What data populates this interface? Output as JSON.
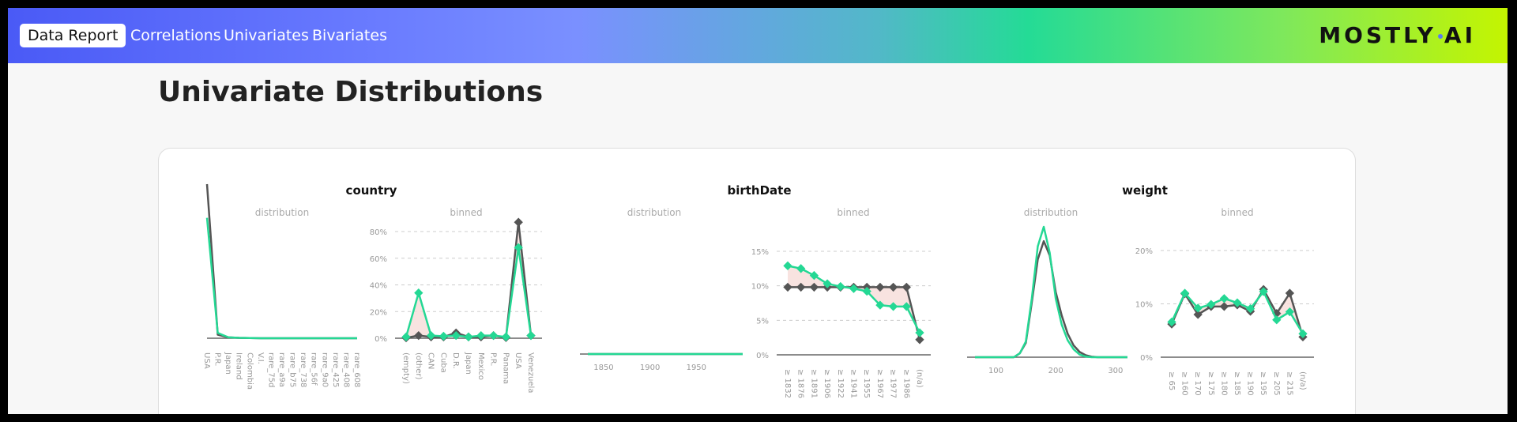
{
  "header": {
    "brand_label": "Data Report",
    "nav": [
      "Correlations",
      "Univariates",
      "Bivariates"
    ],
    "logo": "MOSTLY AI"
  },
  "page_title": "Univariate Distributions",
  "colors": {
    "target": "#555555",
    "synthetic": "#24d894",
    "diff_fill": "#f6dcd8"
  },
  "chart_data": [
    {
      "variable": "country",
      "panel": "distribution",
      "type": "line",
      "categories": [
        "USA",
        "P.R.",
        "Japan",
        "Ireland",
        "Colombia",
        "V.I.",
        "rare_75d",
        "rare_a9a",
        "rare_b75",
        "rare_738",
        "rare_56f",
        "rare_9a0",
        "rare_425",
        "rare_408",
        "rare_608"
      ],
      "series": [
        {
          "values": [
            87,
            2,
            0.5,
            0.2,
            0.1,
            0,
            0,
            0,
            0,
            0,
            0,
            0,
            0,
            0,
            0
          ]
        },
        {
          "values": [
            68,
            3,
            0.5,
            0.2,
            0.1,
            0,
            0,
            0,
            0,
            0,
            0,
            0,
            0,
            0,
            0
          ]
        }
      ]
    },
    {
      "variable": "country",
      "panel": "binned",
      "type": "line",
      "ylim": [
        0,
        90
      ],
      "yticks": [
        "0%",
        "20%",
        "40%",
        "60%",
        "80%"
      ],
      "ytick_values": [
        0,
        20,
        40,
        60,
        80
      ],
      "categories": [
        "(empty)",
        "(other)",
        "CAN",
        "Cuba",
        "D.R.",
        "Japan",
        "Mexico",
        "P.R.",
        "Panama",
        "USA",
        "Venezuela"
      ],
      "series": [
        {
          "values": [
            0.3,
            2,
            1,
            1,
            4,
            1,
            1,
            2,
            0.5,
            87,
            2
          ]
        },
        {
          "values": [
            1,
            34,
            2,
            1.5,
            2,
            1,
            2,
            2,
            1,
            68,
            2
          ]
        }
      ]
    },
    {
      "variable": "birthDate",
      "panel": "distribution",
      "type": "line",
      "xlim": [
        1833,
        2000
      ],
      "xticks": [
        "1850",
        "1900",
        "1950"
      ],
      "xtick_values": [
        1850,
        1900,
        1950
      ],
      "series": [
        {
          "x": [
            1833,
            2000
          ],
          "values": [
            0,
            0
          ]
        },
        {
          "x": [
            1833,
            2000
          ],
          "values": [
            0,
            0
          ]
        }
      ]
    },
    {
      "variable": "birthDate",
      "panel": "binned",
      "type": "line",
      "ylim": [
        0,
        15
      ],
      "yticks": [
        "0%",
        "5%",
        "10%",
        "15%"
      ],
      "ytick_values": [
        0,
        5,
        10,
        15
      ],
      "categories": [
        "≥ 1832",
        "≥ 1876",
        "≥ 1891",
        "≥ 1906",
        "≥ 1922",
        "≥ 1941",
        "≥ 1955",
        "≥ 1967",
        "≥ 1977",
        "≥ 1986",
        "(n/a)"
      ],
      "series": [
        {
          "values": [
            9.8,
            9.8,
            9.8,
            9.8,
            9.8,
            9.8,
            9.8,
            9.8,
            9.8,
            9.8,
            2.2
          ]
        },
        {
          "values": [
            12.9,
            12.5,
            11.5,
            10.3,
            9.9,
            9.6,
            9.2,
            7.2,
            7.0,
            7.0,
            3.2
          ]
        }
      ]
    },
    {
      "variable": "weight",
      "panel": "distribution",
      "type": "line",
      "xlim": [
        65,
        320
      ],
      "xticks": [
        "100",
        "200",
        "300"
      ],
      "xtick_values": [
        100,
        200,
        300
      ],
      "series": [
        {
          "x": [
            65,
            130,
            140,
            150,
            160,
            170,
            180,
            190,
            200,
            210,
            220,
            230,
            240,
            250,
            260,
            270,
            320
          ],
          "values": [
            0,
            0,
            0.03,
            0.11,
            0.42,
            0.75,
            0.89,
            0.78,
            0.5,
            0.32,
            0.18,
            0.09,
            0.04,
            0.015,
            0.004,
            0,
            0
          ]
        },
        {
          "x": [
            65,
            130,
            140,
            150,
            160,
            170,
            180,
            190,
            200,
            210,
            220,
            230,
            240,
            250,
            260,
            320
          ],
          "values": [
            0,
            0,
            0.03,
            0.12,
            0.45,
            0.85,
            1.0,
            0.8,
            0.45,
            0.25,
            0.13,
            0.06,
            0.02,
            0.005,
            0,
            0
          ]
        }
      ]
    },
    {
      "variable": "weight",
      "panel": "binned",
      "type": "line",
      "ylim": [
        0,
        20
      ],
      "yticks": [
        "0%",
        "10%",
        "20%"
      ],
      "ytick_values": [
        0,
        10,
        20
      ],
      "categories": [
        "≥ 65",
        "≥ 160",
        "≥ 170",
        "≥ 175",
        "≥ 180",
        "≥ 185",
        "≥ 190",
        "≥ 195",
        "≥ 205",
        "≥ 215",
        "(n/a)"
      ],
      "series": [
        {
          "values": [
            6.2,
            11.9,
            8.0,
            9.5,
            9.5,
            9.8,
            8.6,
            12.7,
            8.2,
            12.0,
            3.8
          ]
        },
        {
          "values": [
            6.6,
            12.0,
            9.2,
            9.9,
            11.0,
            10.2,
            9.1,
            12.3,
            7.0,
            8.5,
            4.4
          ]
        }
      ]
    }
  ],
  "panels": {
    "distribution_label": "distribution",
    "binned_label": "binned"
  }
}
